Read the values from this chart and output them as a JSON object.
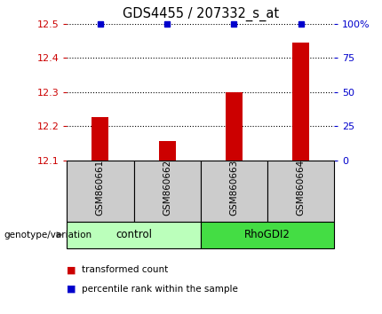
{
  "title": "GDS4455 / 207332_s_at",
  "samples": [
    "GSM860661",
    "GSM860662",
    "GSM860663",
    "GSM860664"
  ],
  "red_values": [
    12.225,
    12.155,
    12.3,
    12.445
  ],
  "blue_values": [
    100,
    100,
    100,
    100
  ],
  "ylim_left": [
    12.1,
    12.5
  ],
  "ylim_right": [
    0,
    100
  ],
  "yticks_left": [
    12.1,
    12.2,
    12.3,
    12.4,
    12.5
  ],
  "yticks_right": [
    0,
    25,
    50,
    75,
    100
  ],
  "ytick_right_labels": [
    "0",
    "25",
    "50",
    "75",
    "100%"
  ],
  "groups": [
    {
      "label": "control",
      "samples": [
        0,
        1
      ],
      "color": "#bbffbb"
    },
    {
      "label": "RhoGDI2",
      "samples": [
        2,
        3
      ],
      "color": "#44dd44"
    }
  ],
  "legend_red": "transformed count",
  "legend_blue": "percentile rank within the sample",
  "genotype_label": "genotype/variation",
  "bar_color": "#cc0000",
  "blue_color": "#0000cc",
  "tick_label_color_left": "#cc0000",
  "tick_label_color_right": "#0000cc",
  "background_plot": "#ffffff",
  "background_label": "#cccccc",
  "bar_width": 0.25
}
